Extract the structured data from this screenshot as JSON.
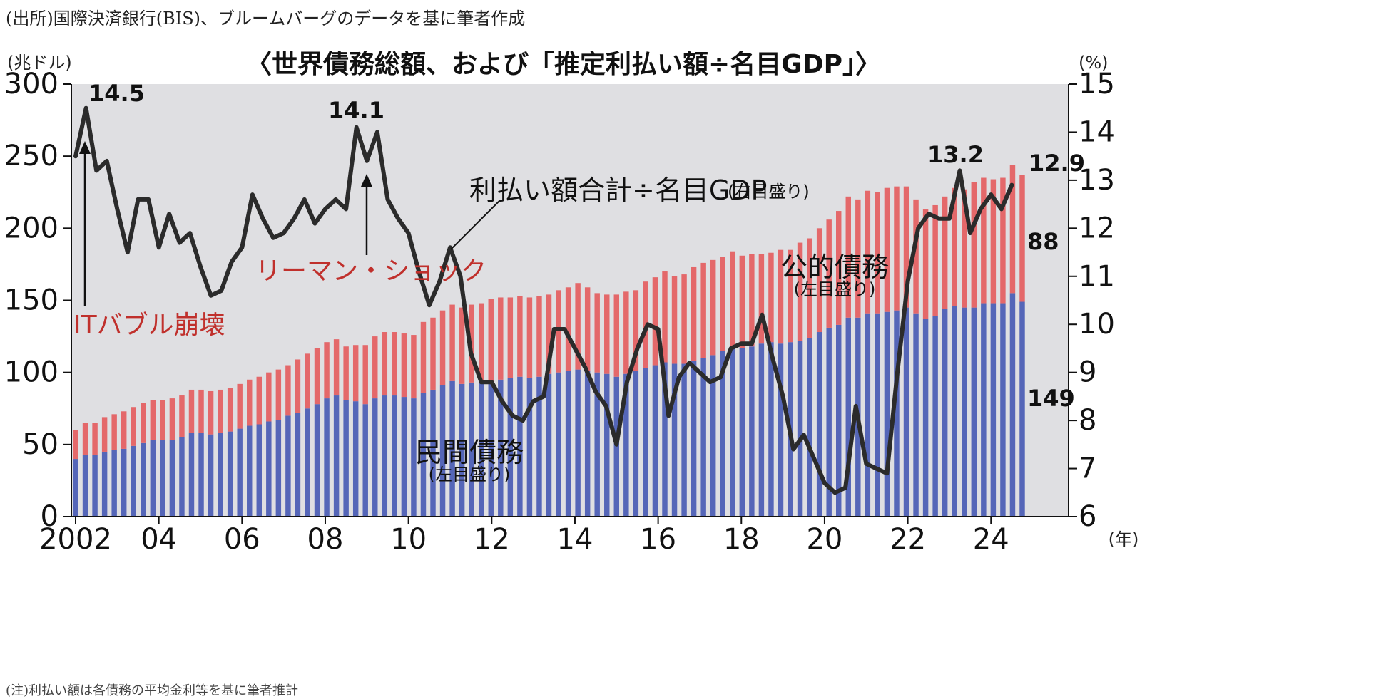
{
  "source_note": "(出所)国際決済銀行(BIS)、ブルームバーグのデータを基に筆者作成",
  "footnote": "(注)利払い額は各債務の平均金利等を基に筆者推計",
  "chart_data": {
    "type": "bar+line",
    "title": "〈世界債務総額、および「推定利払い額÷名目GDP」〉",
    "left_unit": "(兆ドル)",
    "right_unit": "(%)",
    "x_unit": "(年)",
    "left_ylim": [
      0,
      300
    ],
    "left_ticks": [
      "0",
      "50",
      "100",
      "150",
      "200",
      "250",
      "300"
    ],
    "right_ylim": [
      6,
      15
    ],
    "right_ticks": [
      "6",
      "7",
      "8",
      "9",
      "10",
      "11",
      "12",
      "13",
      "14",
      "15"
    ],
    "x_start": 2002,
    "x_end": 2024.75,
    "x_ticks": [
      {
        "year": 2002,
        "label": "2002"
      },
      {
        "year": 2004,
        "label": "04"
      },
      {
        "year": 2006,
        "label": "06"
      },
      {
        "year": 2008,
        "label": "08"
      },
      {
        "year": 2010,
        "label": "10"
      },
      {
        "year": 2012,
        "label": "12"
      },
      {
        "year": 2014,
        "label": "14"
      },
      {
        "year": 2016,
        "label": "16"
      },
      {
        "year": 2018,
        "label": "18"
      },
      {
        "year": 2020,
        "label": "20"
      },
      {
        "year": 2022,
        "label": "22"
      },
      {
        "year": 2024,
        "label": "24"
      }
    ],
    "grid": false,
    "colors": {
      "private": "#5566b8",
      "public": "#e4686a",
      "line": "#2b2b2b",
      "background": "#dfdfe2"
    },
    "series": [
      {
        "name": "民間債務",
        "name_sub": "(左目盛り)",
        "axis": "left",
        "values": [
          40,
          43,
          43,
          45,
          46,
          47,
          49,
          51,
          53,
          53,
          53,
          55,
          58,
          58,
          57,
          58,
          59,
          61,
          63,
          64,
          66,
          67,
          70,
          72,
          75,
          78,
          82,
          84,
          81,
          80,
          78,
          82,
          84,
          84,
          83,
          82,
          86,
          88,
          91,
          94,
          92,
          93,
          93,
          93,
          95,
          96,
          97,
          96,
          97,
          99,
          100,
          101,
          102,
          101,
          100,
          99,
          97,
          99,
          101,
          103,
          105,
          107,
          106,
          106,
          108,
          110,
          112,
          115,
          117,
          117,
          118,
          120,
          121,
          120,
          121,
          122,
          124,
          128,
          131,
          133,
          138,
          138,
          141,
          141,
          142,
          143,
          145,
          141,
          137,
          139,
          144,
          146,
          145,
          145,
          148,
          148,
          148,
          155,
          149
        ]
      },
      {
        "name": "公的債務",
        "name_sub": "(左目盛り)",
        "axis": "left",
        "values": [
          20,
          22,
          22,
          24,
          25,
          26,
          27,
          28,
          28,
          28,
          29,
          29,
          30,
          30,
          30,
          30,
          30,
          31,
          32,
          33,
          34,
          35,
          35,
          37,
          38,
          39,
          39,
          39,
          37,
          39,
          41,
          43,
          44,
          44,
          44,
          44,
          49,
          50,
          52,
          53,
          53,
          54,
          55,
          58,
          57,
          56,
          56,
          56,
          56,
          55,
          57,
          58,
          60,
          58,
          55,
          55,
          57,
          57,
          56,
          60,
          61,
          63,
          61,
          62,
          65,
          66,
          66,
          65,
          67,
          64,
          64,
          62,
          62,
          65,
          64,
          68,
          69,
          72,
          75,
          79,
          84,
          82,
          85,
          84,
          86,
          86,
          84,
          79,
          76,
          77,
          78,
          82,
          82,
          87,
          87,
          86,
          87,
          89,
          88
        ]
      },
      {
        "name": "利払い額合計÷名目GDP",
        "name_sub": "(右目盛り)",
        "axis": "right",
        "x_start": 2002,
        "x_step": 0.25,
        "values": [
          13.5,
          14.5,
          13.2,
          13.4,
          12.4,
          11.5,
          12.6,
          12.6,
          11.6,
          12.3,
          11.7,
          11.9,
          11.2,
          10.6,
          10.7,
          11.3,
          11.6,
          12.7,
          12.2,
          11.8,
          11.9,
          12.2,
          12.6,
          12.1,
          12.4,
          12.6,
          12.4,
          14.1,
          13.4,
          14.0,
          12.6,
          12.2,
          11.9,
          11.1,
          10.4,
          10.9,
          11.6,
          11.0,
          9.4,
          8.8,
          8.8,
          8.4,
          8.1,
          8.0,
          8.4,
          8.5,
          9.9,
          9.9,
          9.5,
          9.1,
          8.6,
          8.3,
          7.5,
          8.8,
          9.5,
          10.0,
          9.9,
          8.1,
          8.9,
          9.2,
          9.0,
          8.8,
          8.9,
          9.5,
          9.6,
          9.6,
          10.2,
          9.3,
          8.5,
          7.4,
          7.7,
          7.2,
          6.7,
          6.5,
          6.6,
          8.3,
          7.1,
          7.0,
          6.9,
          9.0,
          10.9,
          12.0,
          12.3,
          12.2,
          12.2,
          13.2,
          11.9,
          12.4,
          12.7,
          12.4,
          12.9
        ]
      }
    ],
    "annotations": {
      "it_bubble": "ITバブル崩壊",
      "lehman": "リーマン・ショック",
      "line_label": "利払い額合計÷名目GDP",
      "line_label_sub": "(右目盛り)",
      "peak_2002": "14.5",
      "peak_2008": "14.1",
      "peak_2023": "13.2",
      "end_line": "12.9",
      "end_public": "88",
      "end_private": "149"
    }
  }
}
